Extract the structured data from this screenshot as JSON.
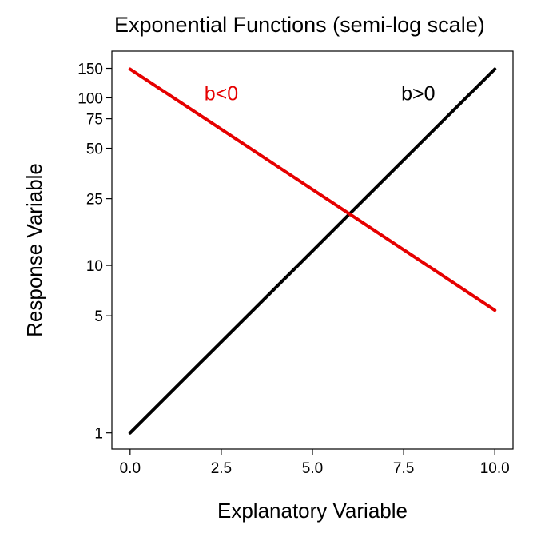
{
  "chart_data": {
    "type": "line",
    "title": "Exponential Functions (semi-log scale)",
    "xlabel": "Explanatory Variable",
    "ylabel": "Response Variable",
    "xlim": [
      -0.5,
      10.5
    ],
    "ylim": [
      0.8,
      190
    ],
    "yscale": "log",
    "grid": false,
    "legend": "none",
    "x_ticks": [
      0.0,
      2.5,
      5.0,
      7.5,
      10.0
    ],
    "x_tick_labels": [
      "0.0",
      "2.5",
      "5.0",
      "7.5",
      "10.0"
    ],
    "y_ticks": [
      1,
      5,
      10,
      25,
      50,
      75,
      100,
      150
    ],
    "y_tick_labels": [
      "1",
      "5",
      "10",
      "25",
      "50",
      "75",
      "100",
      "150"
    ],
    "series": [
      {
        "color": "#000000",
        "x": [
          0,
          2,
          4,
          6,
          8,
          10
        ],
        "y": [
          1,
          2.72,
          7.39,
          20.09,
          54.6,
          148.4
        ]
      },
      {
        "color": "#e60000",
        "x": [
          0,
          2,
          4,
          6,
          8,
          10
        ],
        "y": [
          148.4,
          76.6,
          39.5,
          20.4,
          10.5,
          5.4
        ]
      }
    ],
    "annotations": [
      {
        "text": "b<0",
        "x": 2.5,
        "y": 100,
        "color": "#e60000"
      },
      {
        "text": "b>0",
        "x": 7.9,
        "y": 100,
        "color": "#000000"
      }
    ]
  }
}
